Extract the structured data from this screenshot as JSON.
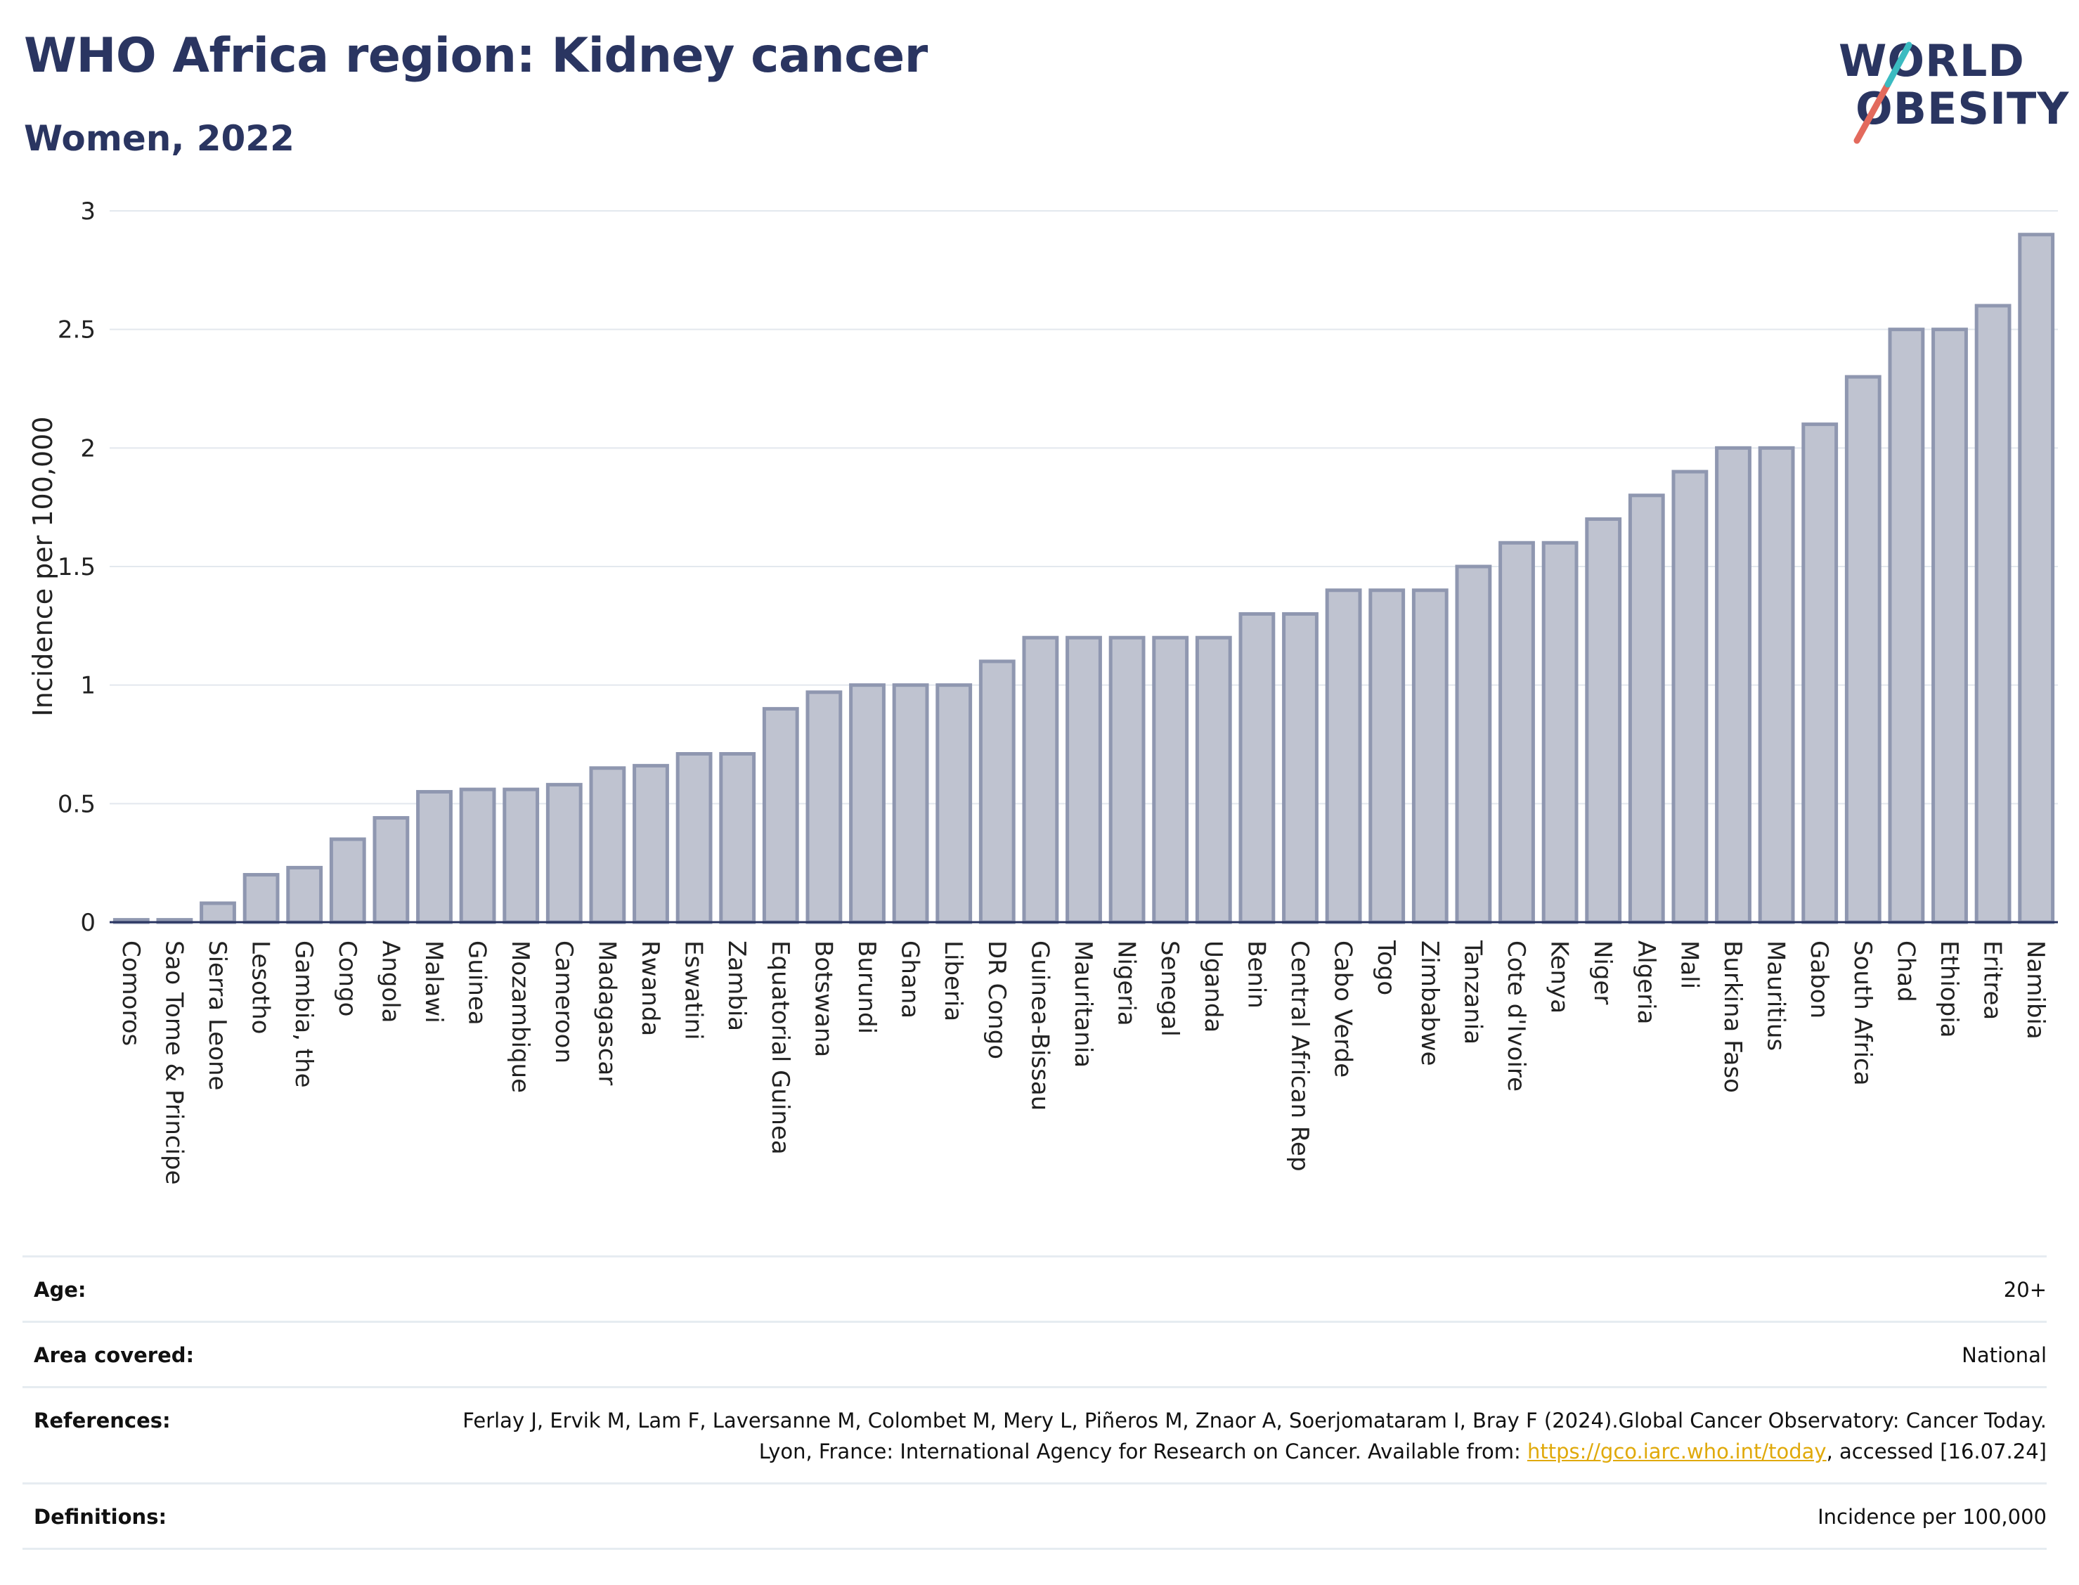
{
  "header": {
    "title": "WHO Africa region: Kidney cancer",
    "subtitle": "Women, 2022"
  },
  "logo": {
    "line1": "WORLD",
    "line2": "OBESITY",
    "slash_colors": [
      "#e36a5d",
      "#3bbbc1"
    ]
  },
  "chart_data": {
    "type": "bar",
    "title": "WHO Africa region: Kidney cancer",
    "subtitle": "Women, 2022",
    "xlabel": "",
    "ylabel": "Incidence per 100,000",
    "ylim": [
      0,
      3
    ],
    "yticks": [
      0,
      0.5,
      1,
      1.5,
      2,
      2.5,
      3
    ],
    "ytick_labels": [
      "0",
      "0.5",
      "1",
      "1.5",
      "2",
      "2.5",
      "3"
    ],
    "grid": true,
    "bar_fill": "#bfc3d0",
    "bar_stroke": "#8f97b0",
    "categories": [
      "Comoros",
      "Sao Tome & Principe",
      "Sierra Leone",
      "Lesotho",
      "Gambia, the",
      "Congo",
      "Angola",
      "Malawi",
      "Guinea",
      "Mozambique",
      "Cameroon",
      "Madagascar",
      "Rwanda",
      "Eswatini",
      "Zambia",
      "Equatorial Guinea",
      "Botswana",
      "Burundi",
      "Ghana",
      "Liberia",
      "DR Congo",
      "Guinea-Bissau",
      "Mauritania",
      "Nigeria",
      "Senegal",
      "Uganda",
      "Benin",
      "Central African Rep",
      "Cabo Verde",
      "Togo",
      "Zimbabwe",
      "Tanzania",
      "Cote d'Ivoire",
      "Kenya",
      "Niger",
      "Algeria",
      "Mali",
      "Burkina Faso",
      "Mauritius",
      "Gabon",
      "South Africa",
      "Chad",
      "Ethiopia",
      "Eritrea",
      "Namibia"
    ],
    "values": [
      0.01,
      0.01,
      0.08,
      0.2,
      0.23,
      0.35,
      0.44,
      0.55,
      0.56,
      0.56,
      0.58,
      0.65,
      0.66,
      0.71,
      0.71,
      0.9,
      0.97,
      1.0,
      1.0,
      1.0,
      1.1,
      1.2,
      1.2,
      1.2,
      1.2,
      1.2,
      1.3,
      1.3,
      1.4,
      1.4,
      1.4,
      1.5,
      1.6,
      1.6,
      1.7,
      1.8,
      1.9,
      2.0,
      2.0,
      2.1,
      2.3,
      2.5,
      2.5,
      2.6,
      2.9
    ]
  },
  "info": {
    "age_label": "Age:",
    "age_value": "20+",
    "area_label": "Area covered:",
    "area_value": "National",
    "references_label": "References:",
    "references_text": "Ferlay J, Ervik M, Lam F, Laversanne M, Colombet M, Mery L, Piñeros M, Znaor A, Soerjomataram I, Bray F (2024).Global Cancer Observatory: Cancer Today. Lyon, France: International Agency for Research on Cancer. Available from: ",
    "references_link": "https://gco.iarc.who.int/today",
    "references_tail": ", accessed [16.07.24]",
    "definitions_label": "Definitions:",
    "definitions_value": "Incidence per 100,000"
  }
}
